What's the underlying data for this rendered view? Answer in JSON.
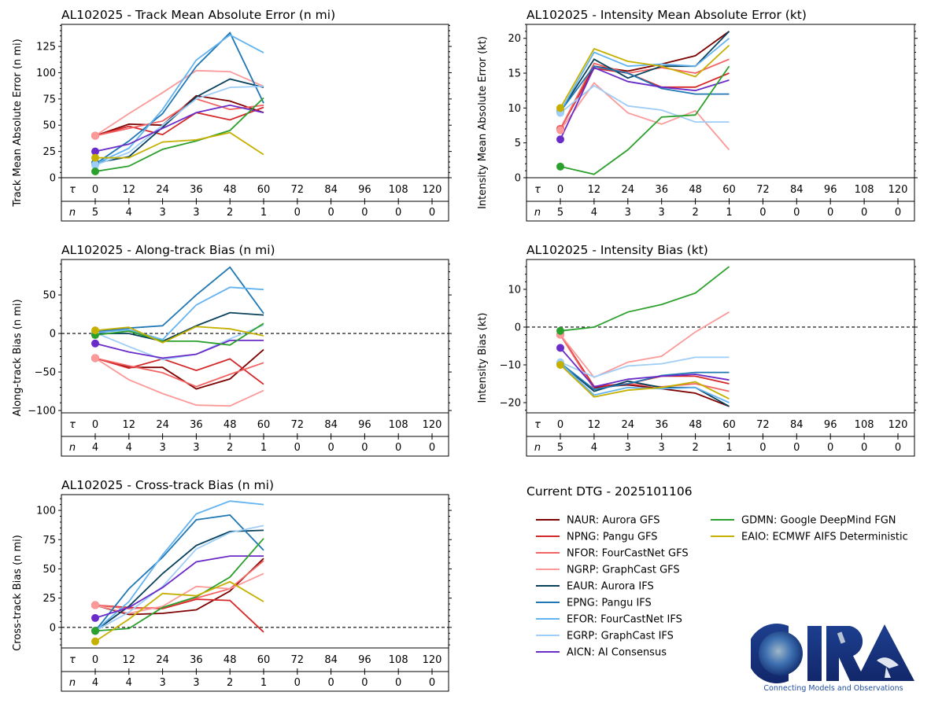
{
  "storm_id": "AL102025",
  "dtg_label": "Current DTG - 2025101106",
  "logo": {
    "name": "CIRA",
    "tagline": "Connecting Models and Observations"
  },
  "row_labels": {
    "tau": "τ",
    "n": "n"
  },
  "models": [
    {
      "code": "NAUR",
      "label": "NAUR: Aurora GFS",
      "color": "#7f0000"
    },
    {
      "code": "NPNG",
      "label": "NPNG: Pangu GFS",
      "color": "#d62728"
    },
    {
      "code": "NFOR",
      "label": "NFOR: FourCastNet GFS",
      "color": "#f26464"
    },
    {
      "code": "NGRP",
      "label": "NGRP: GraphCast GFS",
      "color": "#fb9a99"
    },
    {
      "code": "EAUR",
      "label": "EAUR: Aurora IFS",
      "color": "#08415c"
    },
    {
      "code": "EPNG",
      "label": "EPNG: Pangu IFS",
      "color": "#1f77b4"
    },
    {
      "code": "EFOR",
      "label": "EFOR: FourCastNet IFS",
      "color": "#63b3f0"
    },
    {
      "code": "EGRP",
      "label": "EGRP: GraphCast IFS",
      "color": "#9ecdf7"
    },
    {
      "code": "AICN",
      "label": "AICN: AI Consensus",
      "color": "#6a2cc8"
    },
    {
      "code": "GDMN",
      "label": "GDMN: Google DeepMind FGN",
      "color": "#2ca02c"
    },
    {
      "code": "EAIO",
      "label": "EAIO: ECMWF AIFS Deterministic",
      "color": "#c5b000"
    }
  ],
  "chart_data": [
    {
      "id": "track-mae",
      "type": "line",
      "title": "AL102025 - Track Mean Absolute Error (n mi)",
      "ylabel": "Track Mean Absolute Error (n mi)",
      "xlabel": "τ",
      "x": [
        0,
        12,
        24,
        36,
        48,
        60,
        72,
        84,
        96,
        108,
        120
      ],
      "n": [
        5,
        4,
        3,
        3,
        2,
        1,
        0,
        0,
        0,
        0,
        0
      ],
      "ylim": [
        0,
        146
      ],
      "yticks": [
        0,
        25,
        50,
        75,
        100,
        125
      ],
      "zero_line": false,
      "series": [
        {
          "name": "NAUR",
          "values": [
            40,
            51,
            50,
            78,
            73,
            62
          ]
        },
        {
          "name": "NPNG",
          "values": [
            40,
            49,
            41,
            62,
            55,
            67
          ]
        },
        {
          "name": "NFOR",
          "values": [
            40,
            47,
            54,
            75,
            65,
            69
          ]
        },
        {
          "name": "NGRP",
          "values": [
            40,
            61,
            81,
            102,
            101,
            87
          ]
        },
        {
          "name": "EAUR",
          "values": [
            14,
            20,
            48,
            77,
            94,
            86
          ]
        },
        {
          "name": "EPNG",
          "values": [
            13,
            35,
            61,
            106,
            138,
            71
          ]
        },
        {
          "name": "EFOR",
          "values": [
            13,
            28,
            65,
            112,
            136,
            119
          ]
        },
        {
          "name": "EGRP",
          "values": [
            12,
            24,
            50,
            75,
            86,
            87
          ]
        },
        {
          "name": "AICN",
          "values": [
            25,
            32,
            47,
            62,
            69,
            62
          ]
        },
        {
          "name": "GDMN",
          "values": [
            6,
            11,
            27,
            35,
            45,
            76
          ]
        },
        {
          "name": "EAIO",
          "values": [
            19,
            19,
            34,
            36,
            43,
            22
          ]
        }
      ]
    },
    {
      "id": "intensity-mae",
      "type": "line",
      "title": "AL102025 - Intensity Mean Absolute Error (kt)",
      "ylabel": "Intensity Mean Absolute Error (kt)",
      "xlabel": "τ",
      "x": [
        0,
        12,
        24,
        36,
        48,
        60,
        72,
        84,
        96,
        108,
        120
      ],
      "n": [
        5,
        4,
        3,
        3,
        2,
        1,
        0,
        0,
        0,
        0,
        0
      ],
      "ylim": [
        0,
        22
      ],
      "yticks": [
        0,
        5,
        10,
        15,
        20
      ],
      "zero_line": false,
      "series": [
        {
          "name": "NAUR",
          "values": [
            7,
            16,
            15.3,
            16.3,
            17.5,
            21
          ]
        },
        {
          "name": "NPNG",
          "values": [
            7,
            15.7,
            15,
            13,
            13,
            15
          ]
        },
        {
          "name": "NFOR",
          "values": [
            7,
            16.4,
            15,
            15.8,
            15,
            17
          ]
        },
        {
          "name": "NGRP",
          "values": [
            6.8,
            13.6,
            9.3,
            7.7,
            9.6,
            4
          ]
        },
        {
          "name": "EAUR",
          "values": [
            9.5,
            17,
            14.3,
            16,
            16,
            21
          ]
        },
        {
          "name": "EPNG",
          "values": [
            9.5,
            16,
            15,
            12.8,
            12,
            12
          ]
        },
        {
          "name": "EFOR",
          "values": [
            9.5,
            18,
            16,
            16.3,
            16,
            20
          ]
        },
        {
          "name": "EGRP",
          "values": [
            9.3,
            13.2,
            10.3,
            9.7,
            8,
            8
          ]
        },
        {
          "name": "AICN",
          "values": [
            5.5,
            15.8,
            13.8,
            13,
            12.5,
            14
          ]
        },
        {
          "name": "GDMN",
          "values": [
            1.6,
            0.5,
            4,
            8.7,
            9,
            16
          ]
        },
        {
          "name": "EAIO",
          "values": [
            10,
            18.5,
            16.7,
            16,
            14.5,
            19
          ]
        }
      ]
    },
    {
      "id": "along-track-bias",
      "type": "line",
      "title": "AL102025 - Along-track Bias (n mi)",
      "ylabel": "Along-track Bias (n mi)",
      "xlabel": "τ",
      "x": [
        0,
        12,
        24,
        36,
        48,
        60,
        72,
        84,
        96,
        108,
        120
      ],
      "n": [
        4,
        4,
        3,
        3,
        2,
        1,
        0,
        0,
        0,
        0,
        0
      ],
      "ylim": [
        -103,
        96
      ],
      "yticks": [
        -100,
        -50,
        0,
        50
      ],
      "zero_line": true,
      "series": [
        {
          "name": "NAUR",
          "values": [
            -32,
            -44,
            -44,
            -72,
            -59,
            -21
          ]
        },
        {
          "name": "NPNG",
          "values": [
            -32,
            -45,
            -33,
            -48,
            -33,
            -66
          ]
        },
        {
          "name": "NFOR",
          "values": [
            -32,
            -42,
            -51,
            -69,
            -53,
            -38
          ]
        },
        {
          "name": "NGRP",
          "values": [
            -32,
            -60,
            -78,
            -93,
            -94,
            -74
          ]
        },
        {
          "name": "EAUR",
          "values": [
            0,
            0,
            -10,
            10,
            27,
            24
          ]
        },
        {
          "name": "EPNG",
          "values": [
            2,
            7,
            10,
            50,
            86,
            26
          ]
        },
        {
          "name": "EFOR",
          "values": [
            1,
            5,
            -8,
            37,
            60,
            57
          ]
        },
        {
          "name": "EGRP",
          "values": [
            1,
            -17,
            -34,
            -27,
            -7,
            11
          ]
        },
        {
          "name": "AICN",
          "values": [
            -13,
            -24,
            -32,
            -27,
            -9,
            -9
          ]
        },
        {
          "name": "GDMN",
          "values": [
            -2,
            3,
            -10,
            -10,
            -15,
            13
          ]
        },
        {
          "name": "EAIO",
          "values": [
            4,
            8,
            -12,
            9,
            6,
            -3
          ]
        }
      ]
    },
    {
      "id": "intensity-bias",
      "type": "line",
      "title": "AL102025 - Intensity Bias (kt)",
      "ylabel": "Intensity Bias (kt)",
      "xlabel": "τ",
      "x": [
        0,
        12,
        24,
        36,
        48,
        60,
        72,
        84,
        96,
        108,
        120
      ],
      "n": [
        5,
        4,
        3,
        3,
        2,
        1,
        0,
        0,
        0,
        0,
        0
      ],
      "ylim": [
        -22.7,
        17.9
      ],
      "yticks": [
        -20,
        -10,
        0,
        10
      ],
      "zero_line": true,
      "series": [
        {
          "name": "NAUR",
          "values": [
            -2,
            -16,
            -15.3,
            -16.3,
            -17.5,
            -21
          ]
        },
        {
          "name": "NPNG",
          "values": [
            -2,
            -15.7,
            -15,
            -13,
            -13,
            -15
          ]
        },
        {
          "name": "NFOR",
          "values": [
            -2,
            -16.4,
            -15,
            -15.8,
            -15,
            -17
          ]
        },
        {
          "name": "NGRP",
          "values": [
            -2,
            -13.3,
            -9.3,
            -7.7,
            -1.3,
            4
          ]
        },
        {
          "name": "EAUR",
          "values": [
            -9.5,
            -17,
            -14.3,
            -16,
            -16,
            -21
          ]
        },
        {
          "name": "EPNG",
          "values": [
            -9.5,
            -16.5,
            -15,
            -12.8,
            -12,
            -12
          ]
        },
        {
          "name": "EFOR",
          "values": [
            -9.5,
            -18,
            -16,
            -16.3,
            -16,
            -20
          ]
        },
        {
          "name": "EGRP",
          "values": [
            -9.3,
            -13.2,
            -10.3,
            -9.7,
            -8,
            -8
          ]
        },
        {
          "name": "AICN",
          "values": [
            -5.5,
            -15.8,
            -13.8,
            -13,
            -12.5,
            -14
          ]
        },
        {
          "name": "GDMN",
          "values": [
            -1,
            0,
            4,
            6,
            9,
            16
          ]
        },
        {
          "name": "EAIO",
          "values": [
            -10,
            -18.5,
            -16.7,
            -16,
            -14.5,
            -19
          ]
        }
      ]
    },
    {
      "id": "cross-track-bias",
      "type": "line",
      "title": "AL102025 - Cross-track Bias (n mi)",
      "ylabel": "Cross-track Bias (n mi)",
      "xlabel": "τ",
      "x": [
        0,
        12,
        24,
        36,
        48,
        60,
        72,
        84,
        96,
        108,
        120
      ],
      "n": [
        4,
        4,
        3,
        3,
        2,
        1,
        0,
        0,
        0,
        0,
        0
      ],
      "ylim": [
        -17.6,
        113.5
      ],
      "yticks": [
        0,
        25,
        50,
        75,
        100
      ],
      "zero_line": true,
      "series": [
        {
          "name": "NAUR",
          "values": [
            19,
            11,
            12,
            15,
            31,
            59
          ]
        },
        {
          "name": "NPNG",
          "values": [
            19,
            17,
            16,
            24,
            23,
            -4
          ]
        },
        {
          "name": "NFOR",
          "values": [
            19,
            16,
            17,
            25,
            33,
            57
          ]
        },
        {
          "name": "NGRP",
          "values": [
            19,
            12,
            18,
            35,
            33,
            46
          ]
        },
        {
          "name": "EAUR",
          "values": [
            -3,
            18,
            46,
            70,
            82,
            83
          ]
        },
        {
          "name": "EPNG",
          "values": [
            -3,
            33,
            60,
            92,
            96,
            66
          ]
        },
        {
          "name": "EFOR",
          "values": [
            -3,
            22,
            62,
            97,
            108,
            105
          ]
        },
        {
          "name": "EGRP",
          "values": [
            -3,
            13,
            35,
            67,
            81,
            87
          ]
        },
        {
          "name": "AICN",
          "values": [
            8,
            17,
            34,
            56,
            61,
            61
          ]
        },
        {
          "name": "GDMN",
          "values": [
            -3,
            -1,
            17,
            26,
            43,
            76
          ]
        },
        {
          "name": "EAIO",
          "values": [
            -12,
            7,
            29,
            27,
            39,
            22
          ]
        }
      ]
    }
  ]
}
